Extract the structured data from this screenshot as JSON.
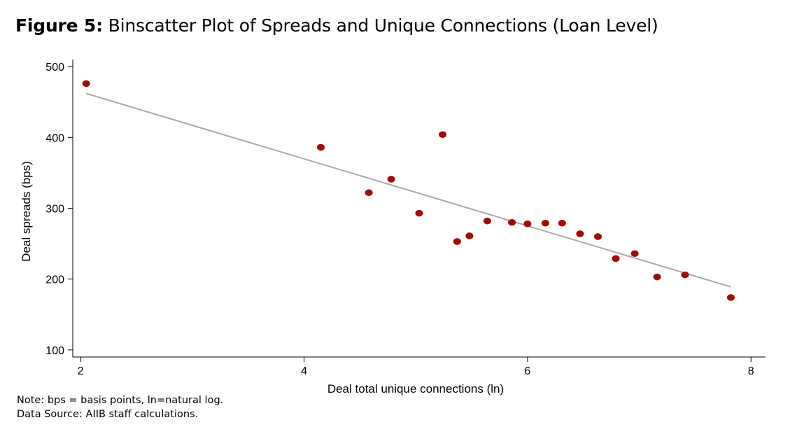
{
  "figure": {
    "label": "Figure 5:",
    "title": "Binscatter Plot of Spreads and Unique Connections (Loan Level)"
  },
  "notes": [
    "Note: bps = basis points, ln=natural log.",
    "Data Source: AIIB staff calculations."
  ],
  "chart_data": {
    "type": "scatter",
    "xlabel": "Deal total unique connections (ln)",
    "ylabel": "Deal spreads (bps)",
    "xlim": [
      1.93,
      8.13
    ],
    "ylim": [
      90,
      510
    ],
    "xticks": [
      2,
      4,
      6,
      8
    ],
    "yticks": [
      100,
      200,
      300,
      400,
      500
    ],
    "grid": false,
    "colors": {
      "points": "#9b0a0a",
      "fit_line": "#a9a9a9"
    },
    "points": [
      {
        "x": 2.05,
        "y": 476
      },
      {
        "x": 4.15,
        "y": 386
      },
      {
        "x": 4.58,
        "y": 322
      },
      {
        "x": 4.78,
        "y": 341
      },
      {
        "x": 5.03,
        "y": 293
      },
      {
        "x": 5.24,
        "y": 404
      },
      {
        "x": 5.37,
        "y": 253
      },
      {
        "x": 5.48,
        "y": 261
      },
      {
        "x": 5.64,
        "y": 282
      },
      {
        "x": 5.86,
        "y": 280
      },
      {
        "x": 6.0,
        "y": 278
      },
      {
        "x": 6.16,
        "y": 279
      },
      {
        "x": 6.31,
        "y": 279
      },
      {
        "x": 6.47,
        "y": 264
      },
      {
        "x": 6.63,
        "y": 260
      },
      {
        "x": 6.79,
        "y": 229
      },
      {
        "x": 6.96,
        "y": 236
      },
      {
        "x": 7.16,
        "y": 203
      },
      {
        "x": 7.41,
        "y": 206
      },
      {
        "x": 7.82,
        "y": 174
      }
    ],
    "fit_line": {
      "x": [
        2.05,
        7.82
      ],
      "y": [
        462,
        189
      ]
    }
  }
}
